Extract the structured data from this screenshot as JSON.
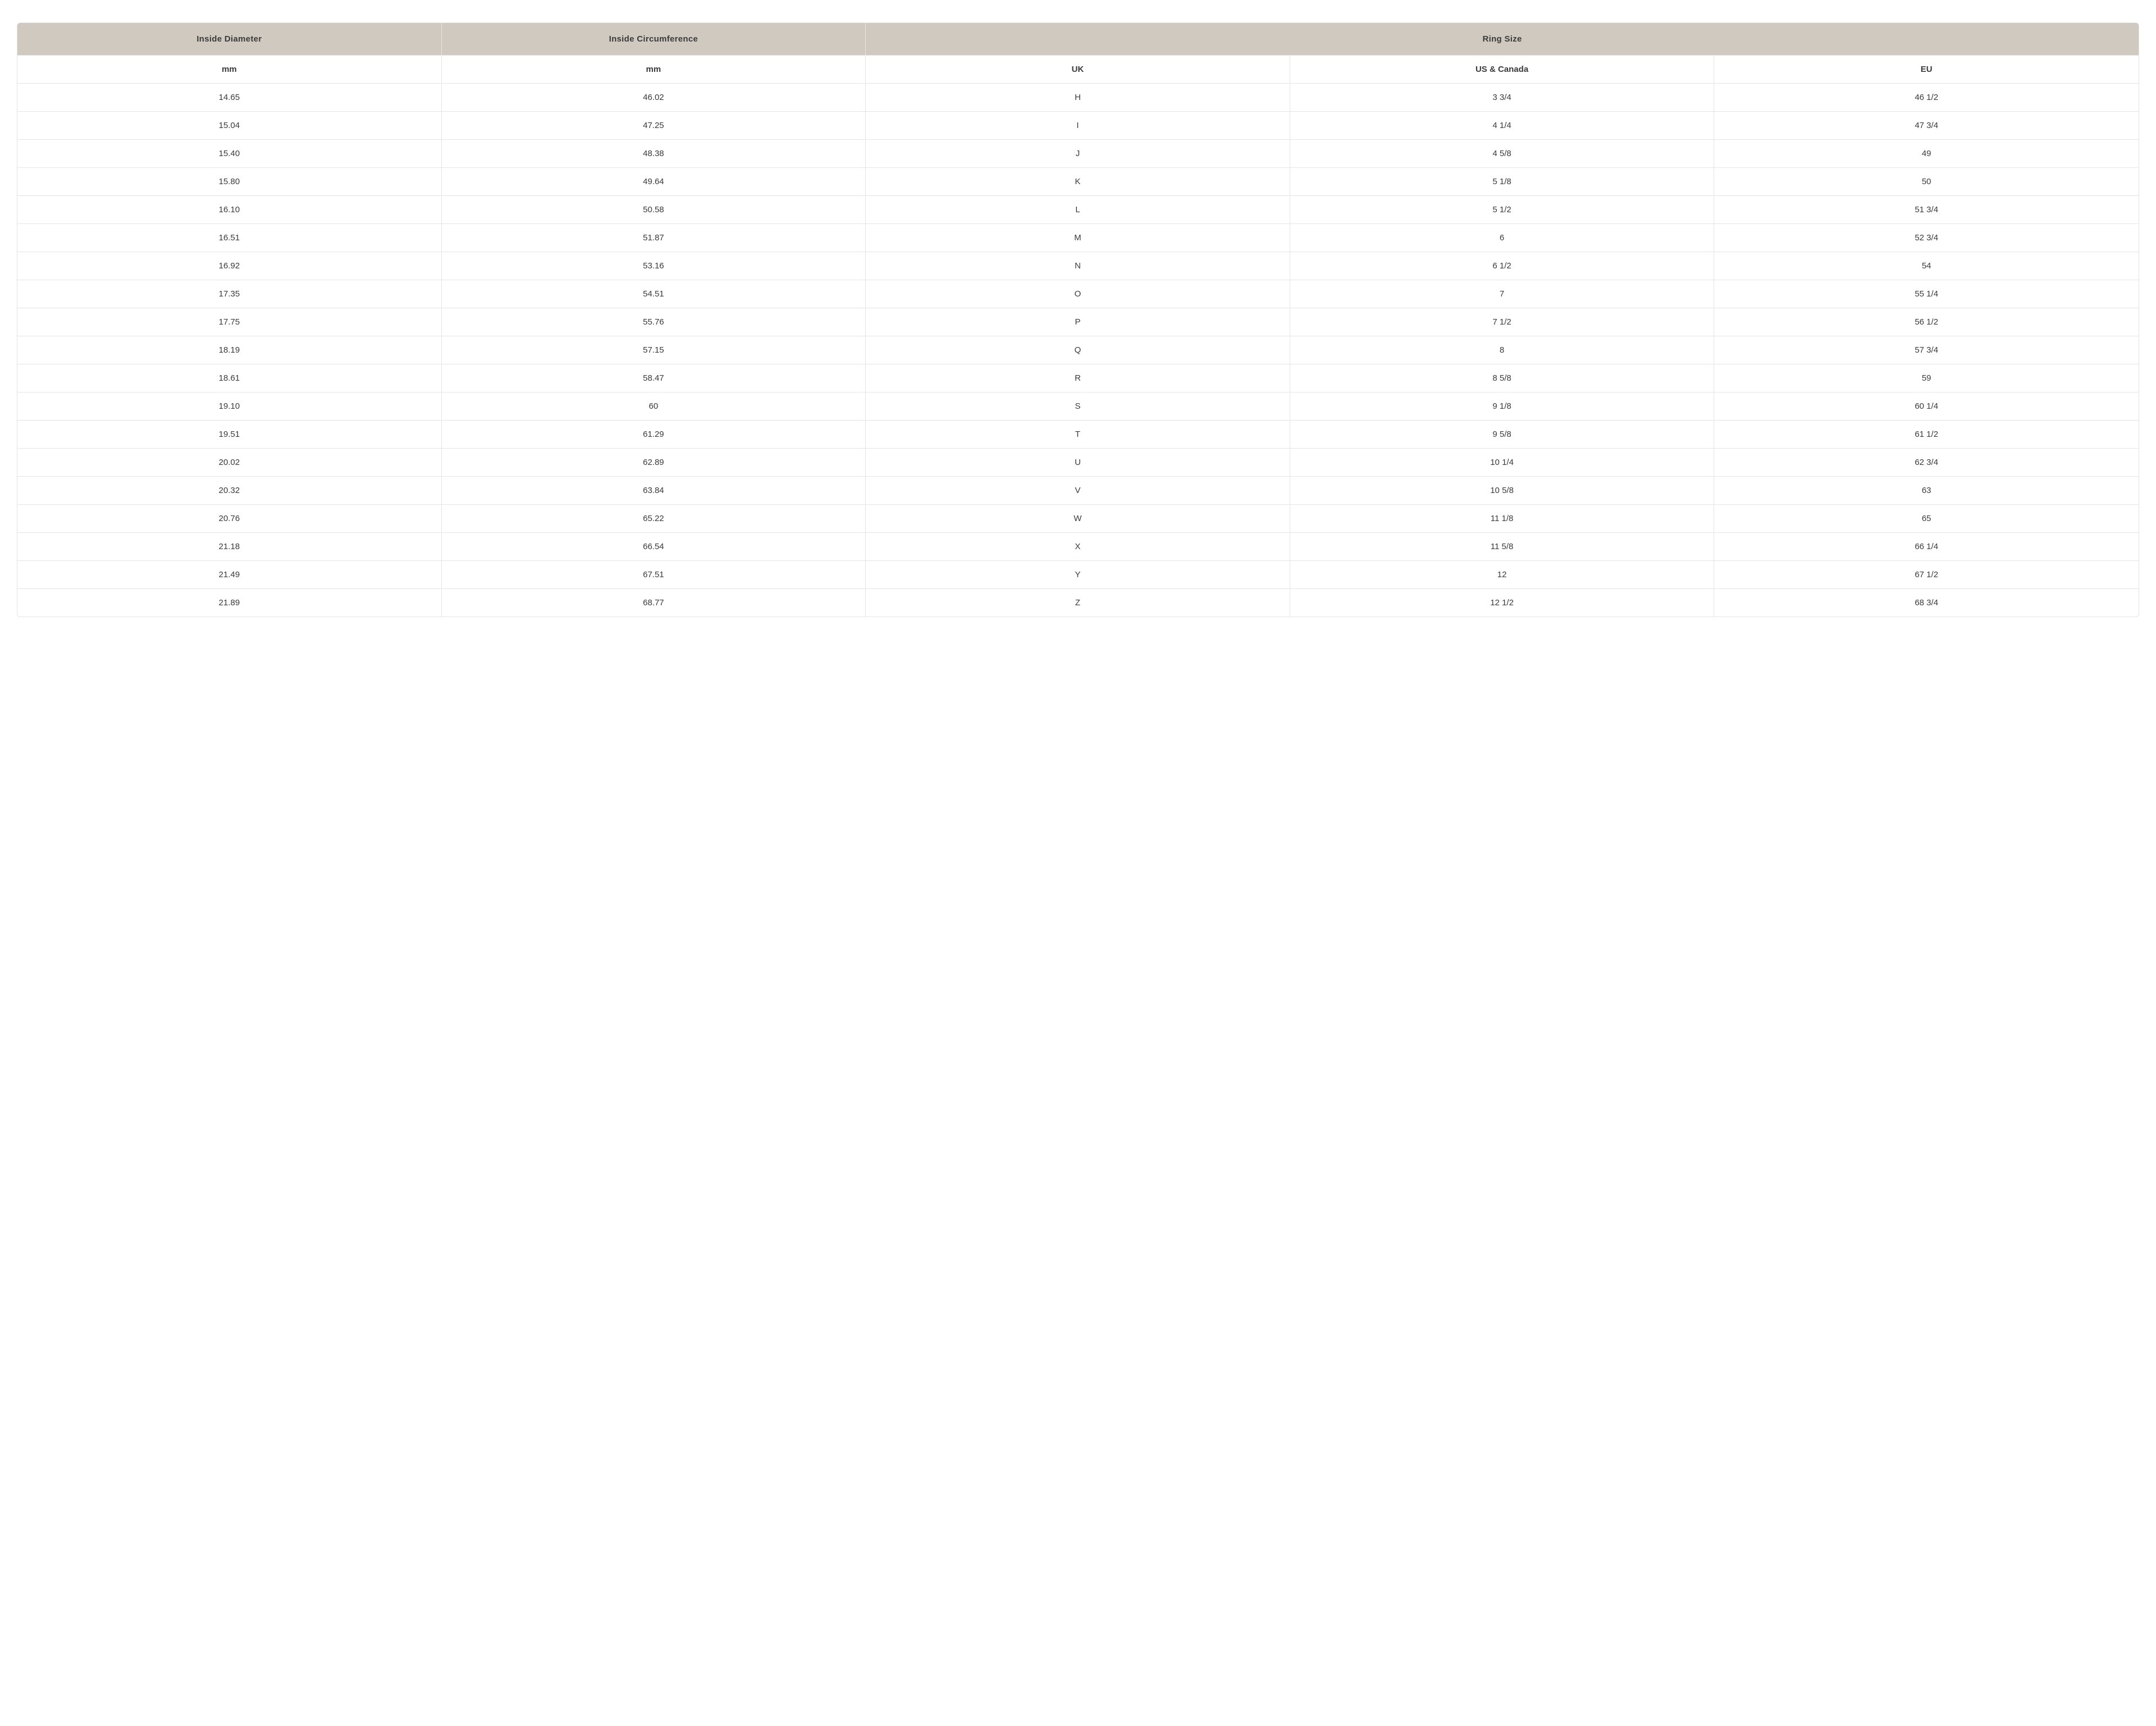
{
  "table": {
    "type": "table",
    "colors": {
      "header_bg": "#cfc9bf",
      "border": "#e5e5e5",
      "text": "#3a3a3a",
      "background": "#ffffff"
    },
    "header_main": {
      "diameter": "Inside Diameter",
      "circumference": "Inside Circumference",
      "ring_size": "Ring Size"
    },
    "header_sub": {
      "diameter_unit": "mm",
      "circumference_unit": "mm",
      "uk": "UK",
      "us": "US & Canada",
      "eu": "EU"
    },
    "columns": [
      "diameter_mm",
      "circumference_mm",
      "uk",
      "us_canada",
      "eu"
    ],
    "rows": [
      [
        "14.65",
        "46.02",
        "H",
        "3 3/4",
        "46 1/2"
      ],
      [
        "15.04",
        "47.25",
        "I",
        "4 1/4",
        "47 3/4"
      ],
      [
        "15.40",
        "48.38",
        "J",
        "4 5/8",
        "49"
      ],
      [
        "15.80",
        "49.64",
        "K",
        "5 1/8",
        "50"
      ],
      [
        "16.10",
        "50.58",
        "L",
        "5 1/2",
        "51 3/4"
      ],
      [
        "16.51",
        "51.87",
        "M",
        "6",
        "52 3/4"
      ],
      [
        "16.92",
        "53.16",
        "N",
        "6 1/2",
        "54"
      ],
      [
        "17.35",
        "54.51",
        "O",
        "7",
        "55 1/4"
      ],
      [
        "17.75",
        "55.76",
        "P",
        "7 1/2",
        "56 1/2"
      ],
      [
        "18.19",
        "57.15",
        "Q",
        "8",
        "57 3/4"
      ],
      [
        "18.61",
        "58.47",
        "R",
        "8 5/8",
        "59"
      ],
      [
        "19.10",
        "60",
        "S",
        "9 1/8",
        "60 1/4"
      ],
      [
        "19.51",
        "61.29",
        "T",
        "9 5/8",
        "61 1/2"
      ],
      [
        "20.02",
        "62.89",
        "U",
        "10 1/4",
        "62 3/4"
      ],
      [
        "20.32",
        "63.84",
        "V",
        "10 5/8",
        "63"
      ],
      [
        "20.76",
        "65.22",
        "W",
        "11 1/8",
        "65"
      ],
      [
        "21.18",
        "66.54",
        "X",
        "11 5/8",
        "66 1/4"
      ],
      [
        "21.49",
        "67.51",
        "Y",
        "12",
        "67 1/2"
      ],
      [
        "21.89",
        "68.77",
        "Z",
        "12 1/2",
        "68 3/4"
      ]
    ]
  }
}
